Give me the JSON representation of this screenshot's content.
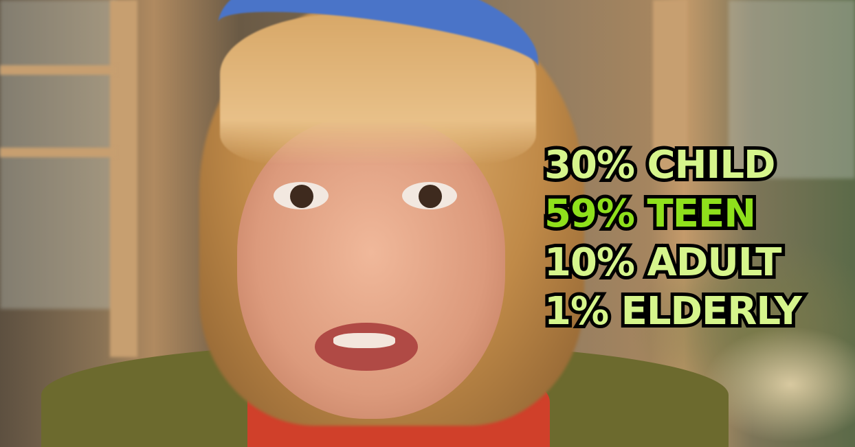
{
  "overlay": {
    "lines": [
      {
        "text": "30% CHILD",
        "color": "#d6f58c"
      },
      {
        "text": "59% TEEN",
        "color": "#8fe01c"
      },
      {
        "text": "10% ADULT",
        "color": "#d6f58c"
      },
      {
        "text": "1% ELDERLY",
        "color": "#d6f58c"
      }
    ]
  },
  "colors": {
    "outline": "#000000"
  }
}
